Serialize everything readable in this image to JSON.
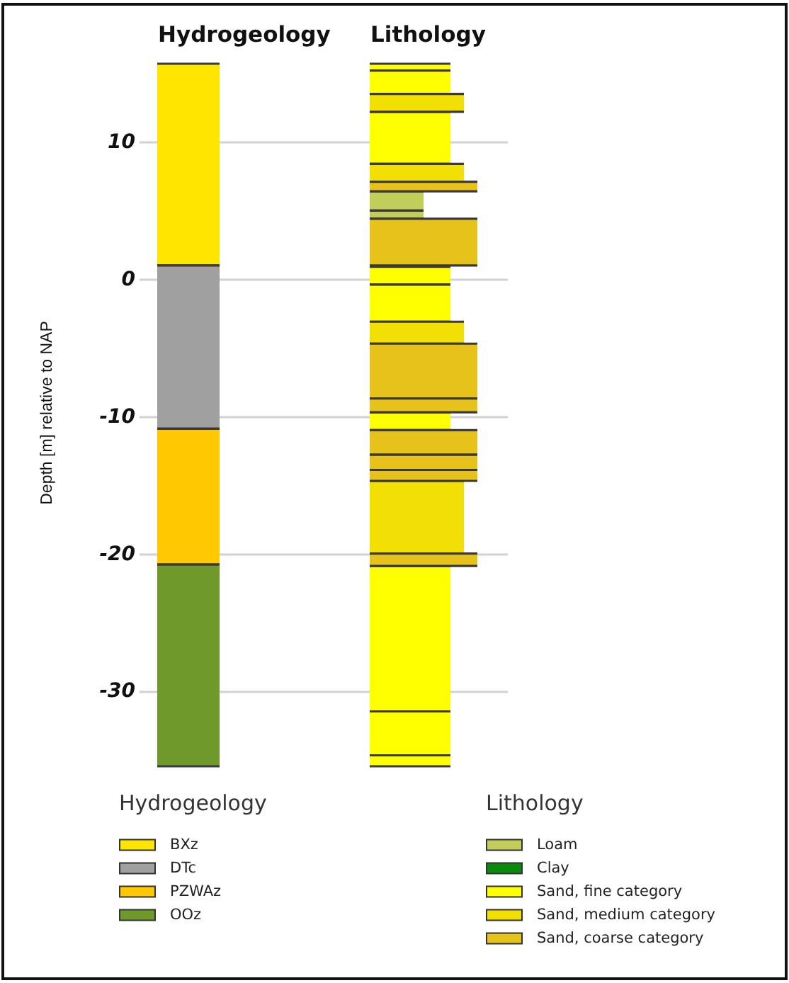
{
  "chart_data": {
    "type": "bar",
    "categories": [
      "Hydrogeology",
      "Lithology"
    ],
    "ylabel": "Depth [m] relative to NAP",
    "ylim": [
      -35.5,
      15.7
    ],
    "yticks": [
      10,
      0,
      -10,
      -20,
      -30
    ],
    "grid": "y",
    "legend": "bottom",
    "series": [
      {
        "name": "BXz",
        "color": "#ffe600",
        "values": [
          14.7,
          null
        ],
        "base": [
          1.0,
          null
        ]
      },
      {
        "name": "DTc",
        "color": "#a0a0a0",
        "values": [
          11.9,
          null
        ],
        "base": [
          -10.9,
          null
        ]
      },
      {
        "name": "PZWAz",
        "color": "#ffc800",
        "values": [
          9.9,
          null
        ],
        "base": [
          -20.8,
          null
        ]
      },
      {
        "name": "OOz",
        "color": "#6f9a2b",
        "values": [
          14.7,
          null
        ],
        "base": [
          -35.5,
          null
        ]
      },
      {
        "name": "Loam",
        "color": "#c3cd5a",
        "values": [
          null,
          1.4
        ],
        "base": [
          null,
          5.0
        ]
      },
      {
        "color": "#c3cd5a",
        "values": [
          null,
          0.6
        ],
        "base": [
          null,
          4.4
        ]
      },
      {
        "name": "Clay",
        "color": "#0a8a0a",
        "values": [
          null,
          0.1
        ],
        "base": [
          null,
          0.9
        ]
      },
      {
        "name": "Sand, fine category",
        "color": "#ffff00",
        "values": [
          null,
          0.5
        ],
        "base": [
          null,
          15.2
        ]
      },
      {
        "color": "#ffff00",
        "values": [
          null,
          1.7
        ],
        "base": [
          null,
          13.5
        ]
      },
      {
        "color": "#ffff00",
        "values": [
          null,
          3.8
        ],
        "base": [
          null,
          8.4
        ]
      },
      {
        "color": "#ffff00",
        "values": [
          null,
          1.3
        ],
        "base": [
          null,
          -0.4
        ]
      },
      {
        "color": "#ffff00",
        "values": [
          null,
          2.7
        ],
        "base": [
          null,
          -3.1
        ]
      },
      {
        "color": "#ffff00",
        "values": [
          null,
          1.3
        ],
        "base": [
          null,
          -11.0
        ]
      },
      {
        "color": "#ffff00",
        "values": [
          null,
          10.6
        ],
        "base": [
          null,
          -31.5
        ]
      },
      {
        "color": "#ffff00",
        "values": [
          null,
          3.2
        ],
        "base": [
          null,
          -34.7
        ]
      },
      {
        "color": "#ffff00",
        "values": [
          null,
          0.8
        ],
        "base": [
          null,
          -35.5
        ]
      },
      {
        "name": "Sand, medium category",
        "color": "#f2df04",
        "values": [
          null,
          1.3
        ],
        "base": [
          null,
          12.2
        ]
      },
      {
        "color": "#f2df04",
        "values": [
          null,
          1.3
        ],
        "base": [
          null,
          7.1
        ]
      },
      {
        "color": "#f2df04",
        "values": [
          null,
          1.6
        ],
        "base": [
          null,
          -4.7
        ]
      },
      {
        "color": "#f2df04",
        "values": [
          null,
          5.3
        ],
        "base": [
          null,
          -20.0
        ]
      },
      {
        "name": "Sand, coarse category",
        "color": "#e6c21a",
        "values": [
          null,
          0.7
        ],
        "base": [
          null,
          6.4
        ]
      },
      {
        "color": "#e6c21a",
        "values": [
          null,
          3.4
        ],
        "base": [
          null,
          1.0
        ]
      },
      {
        "color": "#e6c21a",
        "values": [
          null,
          4.0
        ],
        "base": [
          null,
          -8.7
        ]
      },
      {
        "color": "#e6c21a",
        "values": [
          null,
          1.0
        ],
        "base": [
          null,
          -9.7
        ]
      },
      {
        "color": "#e6c21a",
        "values": [
          null,
          1.8
        ],
        "base": [
          null,
          -12.8
        ]
      },
      {
        "color": "#e6c21a",
        "values": [
          null,
          1.1
        ],
        "base": [
          null,
          -13.9
        ]
      },
      {
        "color": "#e6c21a",
        "values": [
          null,
          0.8
        ],
        "base": [
          null,
          -14.7
        ]
      },
      {
        "color": "#e6c21a",
        "values": [
          null,
          0.9
        ],
        "base": [
          null,
          -20.9
        ]
      }
    ]
  }
}
